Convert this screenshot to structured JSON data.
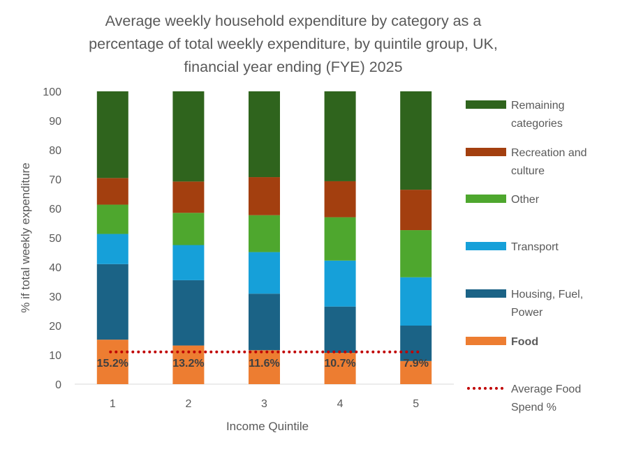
{
  "chart_data": {
    "type": "bar",
    "stacked": true,
    "title_lines": [
      "Average weekly household expenditure by category as a",
      "percentage of total weekly expenditure, by quintile group, UK,",
      "financial year ending (FYE) 2025"
    ],
    "xlabel": "Income Quintile",
    "ylabel": "% if total weekly expenditure",
    "ylim": [
      0,
      100
    ],
    "yticks": [
      0,
      10,
      20,
      30,
      40,
      50,
      60,
      70,
      80,
      90,
      100
    ],
    "categories": [
      "1",
      "2",
      "3",
      "4",
      "5"
    ],
    "series": [
      {
        "name": "Food",
        "color": "#ed7d31",
        "values": [
          15.2,
          13.2,
          11.6,
          10.7,
          7.9
        ],
        "labels": [
          "15.2%",
          "13.2%",
          "11.6%",
          "10.7%",
          "7.9%"
        ]
      },
      {
        "name": "Housing, Fuel, Power",
        "color": "#1b6386",
        "values": [
          25.8,
          22.3,
          19.3,
          15.8,
          12.1
        ]
      },
      {
        "name": "Transport",
        "color": "#16a0d9",
        "values": [
          10.3,
          12.0,
          14.2,
          15.7,
          16.5
        ]
      },
      {
        "name": "Other",
        "color": "#4ea72e",
        "values": [
          10.0,
          11.0,
          12.6,
          14.8,
          16.1
        ]
      },
      {
        "name": "Recreation and culture",
        "color": "#a33f0f",
        "values": [
          9.1,
          10.7,
          13.0,
          12.3,
          13.8
        ]
      },
      {
        "name": "Remaining categories",
        "color": "#2f641d",
        "values": [
          29.6,
          30.8,
          29.3,
          30.7,
          33.6
        ]
      }
    ],
    "reference_line": {
      "name": "Average Food Spend %",
      "value": 11,
      "color": "#c00000",
      "style": "dotted"
    },
    "legend_position": "right",
    "legend_order": [
      "Remaining categories",
      "Recreation and culture",
      "Other",
      "Transport",
      "Housing, Fuel, Power",
      "Food",
      "Average Food Spend %"
    ],
    "legend_lines": {
      "Remaining categories": [
        "Remaining",
        "categories"
      ],
      "Recreation and culture": [
        "Recreation and",
        "culture"
      ],
      "Other": [
        "Other"
      ],
      "Transport": [
        "Transport"
      ],
      "Housing, Fuel, Power": [
        "Housing, Fuel,",
        "Power"
      ],
      "Food": [
        "Food"
      ],
      "Average Food Spend %": [
        "Average Food",
        "Spend %"
      ]
    },
    "legend_bold": [
      "Food"
    ],
    "grid": false
  }
}
